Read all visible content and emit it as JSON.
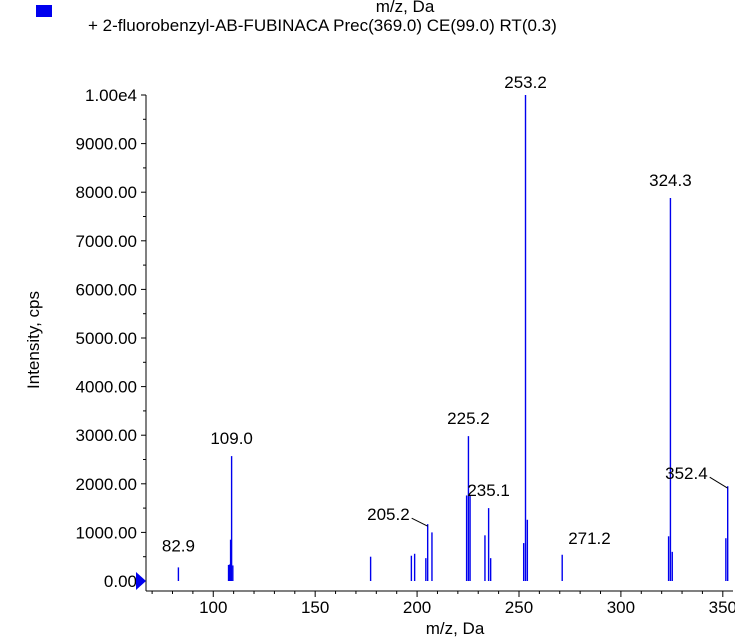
{
  "top_cut_label": "m/z, Da",
  "legend": {
    "label": "+ 2-fluorobenzyl-AB-FUBINACA Prec(369.0) CE(99.0) RT(0.3)",
    "swatch_color": "#0000ee"
  },
  "chart_data": {
    "type": "bar",
    "xlabel": "m/z, Da",
    "ylabel": "Intensity, cps",
    "xlim": [
      67,
      355
    ],
    "ylim": [
      0,
      10000
    ],
    "x_ticks": [
      100,
      150,
      200,
      250,
      300,
      350
    ],
    "x_tick_labels": [
      "100",
      "150",
      "200",
      "250",
      "300",
      "350"
    ],
    "y_ticks": [
      0,
      1000,
      2000,
      3000,
      4000,
      5000,
      6000,
      7000,
      8000,
      9000,
      10000
    ],
    "y_tick_labels": [
      "0.00",
      "1000.00",
      "2000.00",
      "3000.00",
      "4000.00",
      "5000.00",
      "6000.00",
      "7000.00",
      "8000.00",
      "9000.00",
      "1.00e4"
    ],
    "bar_color": "#0000ee",
    "grid": false,
    "peaks": [
      {
        "x": 82.9,
        "y": 280
      },
      {
        "x": 107.5,
        "y": 330
      },
      {
        "x": 108.0,
        "y": 340
      },
      {
        "x": 108.5,
        "y": 850
      },
      {
        "x": 109.0,
        "y": 2570
      },
      {
        "x": 109.6,
        "y": 320
      },
      {
        "x": 177.2,
        "y": 500
      },
      {
        "x": 197.2,
        "y": 520
      },
      {
        "x": 198.8,
        "y": 560
      },
      {
        "x": 204.3,
        "y": 470
      },
      {
        "x": 205.2,
        "y": 1170
      },
      {
        "x": 207.3,
        "y": 1000
      },
      {
        "x": 224.3,
        "y": 1760
      },
      {
        "x": 225.2,
        "y": 2980
      },
      {
        "x": 226.0,
        "y": 1750
      },
      {
        "x": 233.3,
        "y": 940
      },
      {
        "x": 235.1,
        "y": 1500
      },
      {
        "x": 236.1,
        "y": 470
      },
      {
        "x": 252.3,
        "y": 780
      },
      {
        "x": 253.2,
        "y": 10000
      },
      {
        "x": 254.1,
        "y": 1260
      },
      {
        "x": 271.2,
        "y": 540
      },
      {
        "x": 323.4,
        "y": 920
      },
      {
        "x": 324.3,
        "y": 7880
      },
      {
        "x": 325.2,
        "y": 600
      },
      {
        "x": 351.5,
        "y": 880
      },
      {
        "x": 352.4,
        "y": 1950
      }
    ],
    "annotations": [
      {
        "label": "82.9",
        "x": 82.9
      },
      {
        "label": "109.0",
        "x": 109.0
      },
      {
        "label": "205.2",
        "x": 205.2
      },
      {
        "label": "225.2",
        "x": 225.2
      },
      {
        "label": "235.1",
        "x": 235.1
      },
      {
        "label": "253.2",
        "x": 253.2
      },
      {
        "label": "271.2",
        "x": 271.2
      },
      {
        "label": "324.3",
        "x": 324.3
      },
      {
        "label": "352.4",
        "x": 352.4
      }
    ]
  }
}
